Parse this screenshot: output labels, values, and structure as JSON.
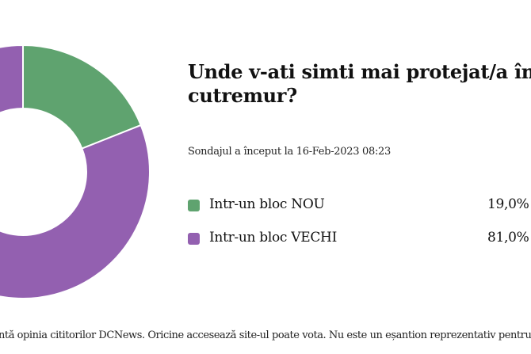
{
  "chart_data": {
    "type": "pie",
    "variant": "donut",
    "title_lines": [
      "Unde v-ati simti mai protejat/a în",
      "cutremur?"
    ],
    "subtitle": "Sondajul a început la 16-Feb-2023 08:23",
    "slices": [
      {
        "label": "Intr-un bloc NOU",
        "value": 19.0,
        "display": "19,0% (",
        "color": "#5fa36f"
      },
      {
        "label": "Intr-un bloc VECHI",
        "value": 81.0,
        "display": "81,0% (",
        "color": "#9360b0"
      }
    ],
    "legend_placement": "right"
  },
  "footer": "ntă opinia cititorilor DCNews. Oricine accesează site-ul poate vota. Nu este un eșantion reprezentativ pentru pop"
}
